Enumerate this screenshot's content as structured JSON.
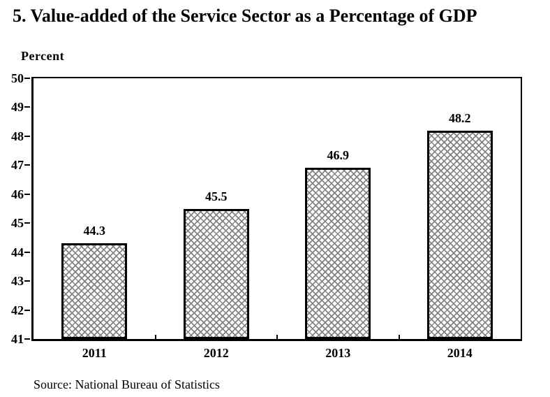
{
  "title": "5. Value-added of the Service Sector as a Percentage of GDP",
  "source": "Source: National Bureau of Statistics",
  "chart_data": {
    "type": "bar",
    "title": "5. Value-added of the Service Sector as a Percentage of GDP",
    "xlabel": "",
    "ylabel": "Percent",
    "categories": [
      "2011",
      "2012",
      "2013",
      "2014"
    ],
    "values": [
      44.3,
      45.5,
      46.9,
      48.2
    ],
    "data_labels": [
      "44.3",
      "45.5",
      "46.9",
      "48.2"
    ],
    "ylim": [
      41,
      50
    ],
    "y_ticks": [
      50,
      49,
      48,
      47,
      46,
      45,
      44,
      43,
      42,
      41
    ],
    "grid": false,
    "legend": "none",
    "bar_fill_style": "gray-crosshatch",
    "bar_hatch_color": "#828282",
    "bar_border_color": "#000000",
    "background_color": "#ffffff"
  }
}
